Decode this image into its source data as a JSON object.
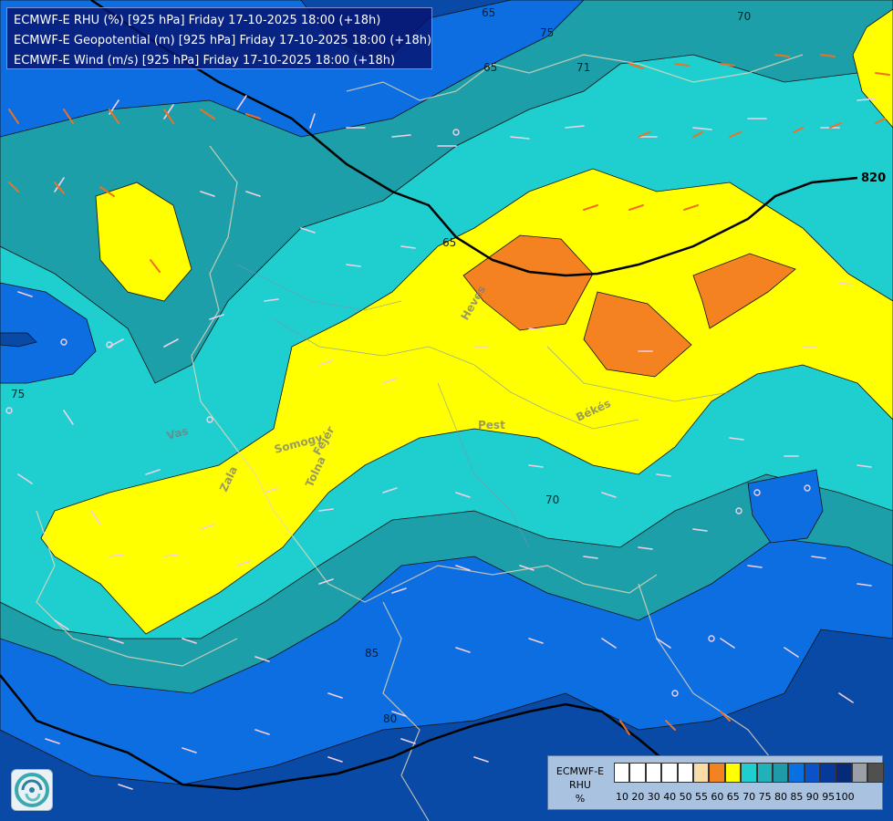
{
  "header": {
    "line1": "ECMWF-E RHU (%) [925 hPa] Friday 17-10-2025 18:00 (+18h)",
    "line2": "ECMWF-E Geopotential (m) [925 hPa] Friday 17-10-2025 18:00 (+18h)",
    "line3": "ECMWF-E Wind (m/s) [925 hPa] Friday 17-10-2025 18:00 (+18h)"
  },
  "contour_labels": {
    "c70_top": "70",
    "c75_top": "75",
    "c65_top": "65",
    "c71_top": "71",
    "c75_left": "75",
    "c65_mid": "65",
    "c70_mid": "70",
    "c85_low": "85",
    "c80_low": "80"
  },
  "geopotential_label": "820",
  "counties": {
    "heves": "Heves",
    "pest": "Pest",
    "bekes": "Békés",
    "vas": "Vas",
    "somogy": "Somogy",
    "fejer": "Fejér",
    "zala": "Zala",
    "tolna": "Tolna"
  },
  "legend": {
    "title1": "ECMWF-E",
    "title2": "RHU",
    "title3": "%",
    "colors": [
      "#ffffff",
      "#ffffff",
      "#ffffff",
      "#ffffff",
      "#ffffff",
      "#f9dca8",
      "#f58220",
      "#ffff00",
      "#1fcfcf",
      "#20b2b8",
      "#1f9aa8",
      "#0a6fe0",
      "#0a52c8",
      "#063a9a",
      "#062a78",
      "#9aa0a6",
      "#505050"
    ],
    "ticks": [
      "10",
      "20",
      "30",
      "40",
      "50",
      "55",
      "60",
      "65",
      "70",
      "75",
      "80",
      "85",
      "90",
      "95",
      "100"
    ]
  },
  "colors": {
    "c90": "#0a3a8a",
    "c85": "#084aa6",
    "c80": "#0c6ee0",
    "c75": "#1d9faa",
    "c70": "#1fcfd0",
    "c65": "#ffff00",
    "c60": "#f58220"
  },
  "icons": {
    "logo": "ecmwf-swirl-logo-icon"
  }
}
